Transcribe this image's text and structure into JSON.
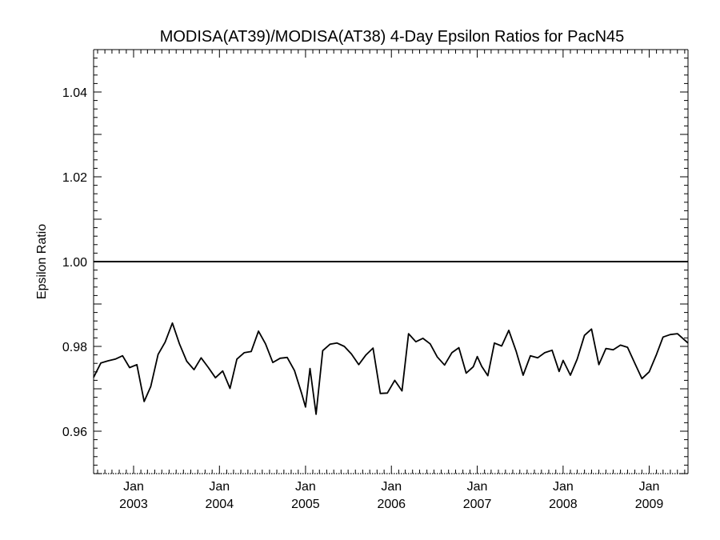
{
  "chart_data": {
    "type": "line",
    "title": "MODISA(AT39)/MODISA(AT38) 4-Day Epsilon Ratios for PacN45",
    "xlabel": "",
    "ylabel": "Epsilon Ratio",
    "xlim": [
      "2002-07-15",
      "2009-06-15"
    ],
    "ylim": [
      0.95,
      1.05
    ],
    "yticks": [
      "0.96",
      "0.98",
      "1.00",
      "1.02",
      "1.04"
    ],
    "xticks": [
      {
        "date": "2003-01-01",
        "month": "Jan",
        "year": "2003"
      },
      {
        "date": "2004-01-01",
        "month": "Jan",
        "year": "2004"
      },
      {
        "date": "2005-01-01",
        "month": "Jan",
        "year": "2005"
      },
      {
        "date": "2006-01-01",
        "month": "Jan",
        "year": "2006"
      },
      {
        "date": "2007-01-01",
        "month": "Jan",
        "year": "2007"
      },
      {
        "date": "2008-01-01",
        "month": "Jan",
        "year": "2008"
      },
      {
        "date": "2009-01-01",
        "month": "Jan",
        "year": "2009"
      }
    ],
    "reference_line": 1.0,
    "grid": false,
    "series": [
      {
        "points": [
          [
            "2002-07-15",
            0.9727
          ],
          [
            "2002-08-15",
            0.9761
          ],
          [
            "2002-09-15",
            0.9766
          ],
          [
            "2002-10-15",
            0.977
          ],
          [
            "2002-11-15",
            0.9778
          ],
          [
            "2002-12-15",
            0.975
          ],
          [
            "2003-01-15",
            0.9757
          ],
          [
            "2003-02-15",
            0.967
          ],
          [
            "2003-03-15",
            0.9705
          ],
          [
            "2003-04-15",
            0.9781
          ],
          [
            "2003-05-15",
            0.981
          ],
          [
            "2003-06-15",
            0.9855
          ],
          [
            "2003-07-15",
            0.9806
          ],
          [
            "2003-08-15",
            0.9765
          ],
          [
            "2003-09-15",
            0.9745
          ],
          [
            "2003-10-15",
            0.9773
          ],
          [
            "2003-11-15",
            0.975
          ],
          [
            "2003-12-15",
            0.9726
          ],
          [
            "2004-01-15",
            0.9742
          ],
          [
            "2004-02-15",
            0.9701
          ],
          [
            "2004-03-15",
            0.977
          ],
          [
            "2004-04-15",
            0.9785
          ],
          [
            "2004-05-15",
            0.9788
          ],
          [
            "2004-06-15",
            0.9836
          ],
          [
            "2004-07-15",
            0.9806
          ],
          [
            "2004-08-15",
            0.9762
          ],
          [
            "2004-09-15",
            0.9772
          ],
          [
            "2004-10-15",
            0.9774
          ],
          [
            "2004-11-15",
            0.9743
          ],
          [
            "2004-12-15",
            0.969
          ],
          [
            "2005-01-01",
            0.9657
          ],
          [
            "2005-01-20",
            0.9748
          ],
          [
            "2005-02-15",
            0.964
          ],
          [
            "2005-03-15",
            0.979
          ],
          [
            "2005-04-15",
            0.9805
          ],
          [
            "2005-05-15",
            0.9808
          ],
          [
            "2005-06-15",
            0.98
          ],
          [
            "2005-07-15",
            0.9782
          ],
          [
            "2005-08-15",
            0.9757
          ],
          [
            "2005-09-15",
            0.978
          ],
          [
            "2005-10-15",
            0.9796
          ],
          [
            "2005-11-15",
            0.9689
          ],
          [
            "2005-12-15",
            0.969
          ],
          [
            "2006-01-15",
            0.972
          ],
          [
            "2006-02-15",
            0.9695
          ],
          [
            "2006-03-15",
            0.983
          ],
          [
            "2006-04-15",
            0.9811
          ],
          [
            "2006-05-15",
            0.9819
          ],
          [
            "2006-06-15",
            0.9806
          ],
          [
            "2006-07-15",
            0.9775
          ],
          [
            "2006-08-15",
            0.9756
          ],
          [
            "2006-09-15",
            0.9785
          ],
          [
            "2006-10-15",
            0.9797
          ],
          [
            "2006-11-15",
            0.9737
          ],
          [
            "2006-12-15",
            0.9752
          ],
          [
            "2007-01-01",
            0.9776
          ],
          [
            "2007-01-20",
            0.9753
          ],
          [
            "2007-02-15",
            0.9731
          ],
          [
            "2007-03-15",
            0.9808
          ],
          [
            "2007-04-15",
            0.9801
          ],
          [
            "2007-05-15",
            0.9838
          ],
          [
            "2007-06-15",
            0.9789
          ],
          [
            "2007-07-15",
            0.9732
          ],
          [
            "2007-08-15",
            0.9778
          ],
          [
            "2007-09-15",
            0.9773
          ],
          [
            "2007-10-15",
            0.9785
          ],
          [
            "2007-11-15",
            0.9791
          ],
          [
            "2007-12-15",
            0.9741
          ],
          [
            "2008-01-01",
            0.9767
          ],
          [
            "2008-02-01",
            0.9732
          ],
          [
            "2008-03-01",
            0.977
          ],
          [
            "2008-04-01",
            0.9826
          ],
          [
            "2008-05-01",
            0.9841
          ],
          [
            "2008-06-01",
            0.9757
          ],
          [
            "2008-07-01",
            0.9795
          ],
          [
            "2008-08-01",
            0.9792
          ],
          [
            "2008-09-01",
            0.9803
          ],
          [
            "2008-10-01",
            0.9798
          ],
          [
            "2008-11-01",
            0.976
          ],
          [
            "2008-12-01",
            0.9724
          ],
          [
            "2009-01-01",
            0.974
          ],
          [
            "2009-02-01",
            0.9781
          ],
          [
            "2009-03-01",
            0.9822
          ],
          [
            "2009-04-01",
            0.9828
          ],
          [
            "2009-05-01",
            0.983
          ],
          [
            "2009-06-15",
            0.9808
          ]
        ]
      }
    ]
  }
}
